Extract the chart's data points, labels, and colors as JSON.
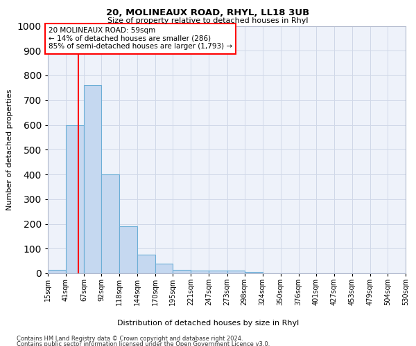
{
  "title": "20, MOLINEAUX ROAD, RHYL, LL18 3UB",
  "subtitle": "Size of property relative to detached houses in Rhyl",
  "xlabel_bottom": "Distribution of detached houses by size in Rhyl",
  "ylabel": "Number of detached properties",
  "footnote1": "Contains HM Land Registry data © Crown copyright and database right 2024.",
  "footnote2": "Contains public sector information licensed under the Open Government Licence v3.0.",
  "bin_edges": [
    15,
    41,
    67,
    92,
    118,
    144,
    170,
    195,
    221,
    247,
    273,
    298,
    324,
    350,
    376,
    401,
    427,
    453,
    479,
    504,
    530
  ],
  "bin_labels": [
    "15sqm",
    "41sqm",
    "67sqm",
    "92sqm",
    "118sqm",
    "144sqm",
    "170sqm",
    "195sqm",
    "221sqm",
    "247sqm",
    "273sqm",
    "298sqm",
    "324sqm",
    "350sqm",
    "376sqm",
    "401sqm",
    "427sqm",
    "453sqm",
    "479sqm",
    "504sqm",
    "530sqm"
  ],
  "bar_values": [
    15,
    600,
    760,
    400,
    190,
    75,
    40,
    15,
    10,
    10,
    10,
    5,
    0,
    0,
    0,
    0,
    0,
    0,
    0,
    0
  ],
  "bar_color": "#c5d8f0",
  "bar_edge_color": "#6baed6",
  "property_line_x": 59,
  "property_line_color": "red",
  "annotation_text": "20 MOLINEAUX ROAD: 59sqm\n← 14% of detached houses are smaller (286)\n85% of semi-detached houses are larger (1,793) →",
  "annotation_box_color": "red",
  "ylim": [
    0,
    1000
  ],
  "yticks": [
    0,
    100,
    200,
    300,
    400,
    500,
    600,
    700,
    800,
    900,
    1000
  ],
  "grid_color": "#d0d8e8",
  "background_color": "#eef2fa",
  "title_fontsize": 9.5,
  "subtitle_fontsize": 8,
  "ylabel_fontsize": 8,
  "tick_fontsize": 7,
  "annot_fontsize": 7.5,
  "footnote_fontsize": 6
}
